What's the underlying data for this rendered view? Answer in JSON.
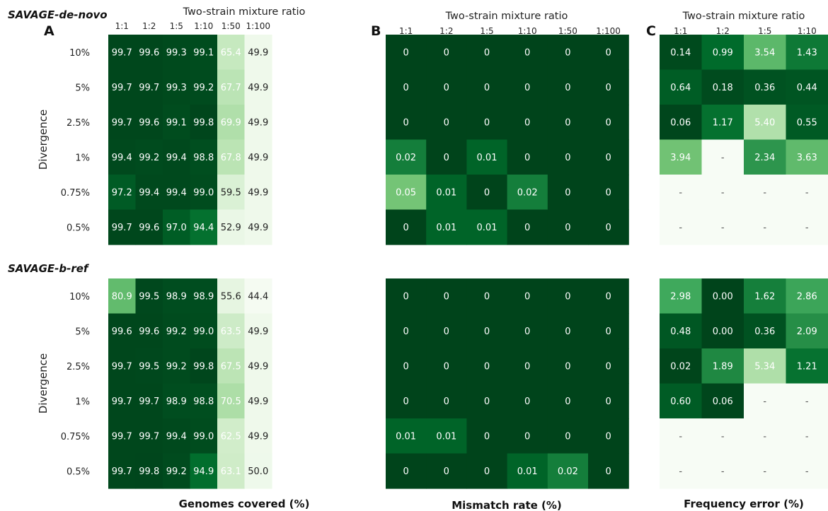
{
  "panel_letters": [
    "A",
    "B",
    "C"
  ],
  "method_labels": [
    "SAVAGE-de-novo",
    "SAVAGE-b-ref"
  ],
  "column_header_title": "Two-strain mixture ratio",
  "y_axis_label": "Divergence",
  "chart_data": [
    {
      "type": "heatmap",
      "panel": "A",
      "method": "SAVAGE-de-novo",
      "xlabel": "Genomes covered (%)",
      "ylabel": "Divergence",
      "top_title": "Two-strain mixture ratio",
      "columns": [
        "1:1",
        "1:2",
        "1:5",
        "1:10",
        "1:50",
        "1:100"
      ],
      "rows": [
        "10%",
        "5%",
        "2.5%",
        "1%",
        "0.75%",
        "0.5%"
      ],
      "values": [
        [
          "99.7",
          "99.6",
          "99.3",
          "99.1",
          "65.4",
          "49.9"
        ],
        [
          "99.7",
          "99.7",
          "99.3",
          "99.2",
          "67.7",
          "49.9"
        ],
        [
          "99.7",
          "99.6",
          "99.1",
          "99.8",
          "69.9",
          "49.9"
        ],
        [
          "99.4",
          "99.2",
          "99.4",
          "98.8",
          "67.8",
          "49.9"
        ],
        [
          "97.2",
          "99.4",
          "99.4",
          "99.0",
          "59.5",
          "49.9"
        ],
        [
          "99.7",
          "99.6",
          "97.0",
          "94.4",
          "52.9",
          "49.9"
        ]
      ]
    },
    {
      "type": "heatmap",
      "panel": "B",
      "method": "SAVAGE-de-novo",
      "xlabel": "Mismatch rate (%)",
      "ylabel": "Divergence",
      "top_title": "Two-strain mixture ratio",
      "columns": [
        "1:1",
        "1:2",
        "1:5",
        "1:10",
        "1:50",
        "1:100"
      ],
      "rows": [
        "10%",
        "5%",
        "2.5%",
        "1%",
        "0.75%",
        "0.5%"
      ],
      "values": [
        [
          "0",
          "0",
          "0",
          "0",
          "0",
          "0"
        ],
        [
          "0",
          "0",
          "0",
          "0",
          "0",
          "0"
        ],
        [
          "0",
          "0",
          "0",
          "0",
          "0",
          "0"
        ],
        [
          "0.02",
          "0",
          "0.01",
          "0",
          "0",
          "0"
        ],
        [
          "0.05",
          "0.01",
          "0",
          "0.02",
          "0",
          "0"
        ],
        [
          "0",
          "0.01",
          "0.01",
          "0",
          "0",
          "0"
        ]
      ]
    },
    {
      "type": "heatmap",
      "panel": "C",
      "method": "SAVAGE-de-novo",
      "xlabel": "Frequency error (%)",
      "ylabel": "Divergence",
      "top_title": "Two-strain mixture ratio",
      "columns": [
        "1:1",
        "1:2",
        "1:5",
        "1:10"
      ],
      "rows": [
        "10%",
        "5%",
        "2.5%",
        "1%",
        "0.75%",
        "0.5%"
      ],
      "values": [
        [
          "0.14",
          "0.99",
          "3.54",
          "1.43"
        ],
        [
          "0.64",
          "0.18",
          "0.36",
          "0.44"
        ],
        [
          "0.06",
          "1.17",
          "5.40",
          "0.55"
        ],
        [
          "3.94",
          "-",
          "2.34",
          "3.63"
        ],
        [
          "-",
          "-",
          "-",
          "-"
        ],
        [
          "-",
          "-",
          "-",
          "-"
        ]
      ]
    },
    {
      "type": "heatmap",
      "panel": "A",
      "method": "SAVAGE-b-ref",
      "xlabel": "Genomes covered (%)",
      "ylabel": "Divergence",
      "columns": [
        "1:1",
        "1:2",
        "1:5",
        "1:10",
        "1:50",
        "1:100"
      ],
      "rows": [
        "10%",
        "5%",
        "2.5%",
        "1%",
        "0.75%",
        "0.5%"
      ],
      "values": [
        [
          "80.9",
          "99.5",
          "98.9",
          "98.9",
          "55.6",
          "44.4"
        ],
        [
          "99.6",
          "99.6",
          "99.2",
          "99.0",
          "63.5",
          "49.9"
        ],
        [
          "99.7",
          "99.5",
          "99.2",
          "99.8",
          "67.5",
          "49.9"
        ],
        [
          "99.7",
          "99.7",
          "98.9",
          "98.8",
          "70.5",
          "49.9"
        ],
        [
          "99.7",
          "99.7",
          "99.4",
          "99.0",
          "62.5",
          "49.9"
        ],
        [
          "99.7",
          "99.8",
          "99.2",
          "94.9",
          "63.1",
          "50.0"
        ]
      ]
    },
    {
      "type": "heatmap",
      "panel": "B",
      "method": "SAVAGE-b-ref",
      "xlabel": "Mismatch rate (%)",
      "ylabel": "Divergence",
      "columns": [
        "1:1",
        "1:2",
        "1:5",
        "1:10",
        "1:50",
        "1:100"
      ],
      "rows": [
        "10%",
        "5%",
        "2.5%",
        "1%",
        "0.75%",
        "0.5%"
      ],
      "values": [
        [
          "0",
          "0",
          "0",
          "0",
          "0",
          "0"
        ],
        [
          "0",
          "0",
          "0",
          "0",
          "0",
          "0"
        ],
        [
          "0",
          "0",
          "0",
          "0",
          "0",
          "0"
        ],
        [
          "0",
          "0",
          "0",
          "0",
          "0",
          "0"
        ],
        [
          "0.01",
          "0.01",
          "0",
          "0",
          "0",
          "0"
        ],
        [
          "0",
          "0",
          "0",
          "0.01",
          "0.02",
          "0"
        ]
      ]
    },
    {
      "type": "heatmap",
      "panel": "C",
      "method": "SAVAGE-b-ref",
      "xlabel": "Frequency error (%)",
      "ylabel": "Divergence",
      "columns": [
        "1:1",
        "1:2",
        "1:5",
        "1:10"
      ],
      "rows": [
        "10%",
        "5%",
        "2.5%",
        "1%",
        "0.75%",
        "0.5%"
      ],
      "values": [
        [
          "2.98",
          "0.00",
          "1.62",
          "2.86"
        ],
        [
          "0.48",
          "0.00",
          "0.36",
          "2.09"
        ],
        [
          "0.02",
          "1.89",
          "5.34",
          "1.21"
        ],
        [
          "0.60",
          "0.06",
          "-",
          "-"
        ],
        [
          "-",
          "-",
          "-",
          "-"
        ],
        [
          "-",
          "-",
          "-",
          "-"
        ]
      ]
    }
  ]
}
